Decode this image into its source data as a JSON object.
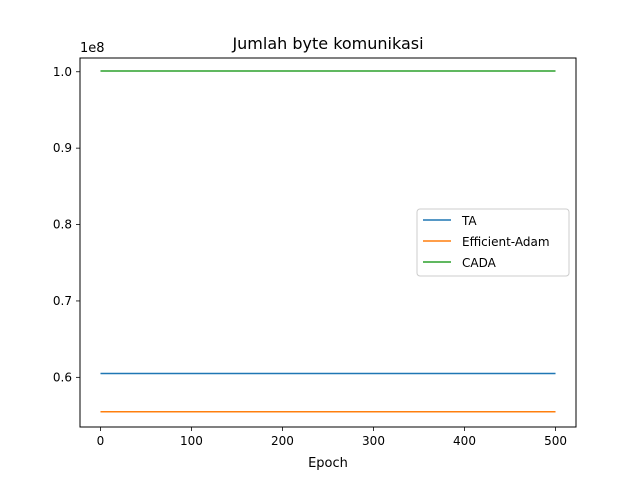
{
  "chart_data": {
    "type": "line",
    "title": "Jumlah byte komunikasi",
    "xlabel": "Epoch",
    "ylabel": "",
    "y_offset_label": "1e8",
    "xlim": [
      -22.5,
      522.5
    ],
    "ylim": [
      53500000,
      101800000
    ],
    "xticks": [
      0,
      100,
      200,
      300,
      400,
      500
    ],
    "yticks": [
      60000000,
      70000000,
      80000000,
      90000000,
      100000000
    ],
    "ytick_labels": [
      "0.6",
      "0.7",
      "0.8",
      "0.9",
      "1.0"
    ],
    "grid": false,
    "legend_position": "center-right",
    "series": [
      {
        "name": "TA",
        "color": "#1f77b4",
        "x": [
          0,
          500
        ],
        "y": [
          60500000,
          60500000
        ]
      },
      {
        "name": "Efficient-Adam",
        "color": "#ff7f0e",
        "x": [
          0,
          500
        ],
        "y": [
          55500000,
          55500000
        ]
      },
      {
        "name": "CADA",
        "color": "#2ca02c",
        "x": [
          0,
          500
        ],
        "y": [
          100100000,
          100100000
        ]
      }
    ]
  }
}
